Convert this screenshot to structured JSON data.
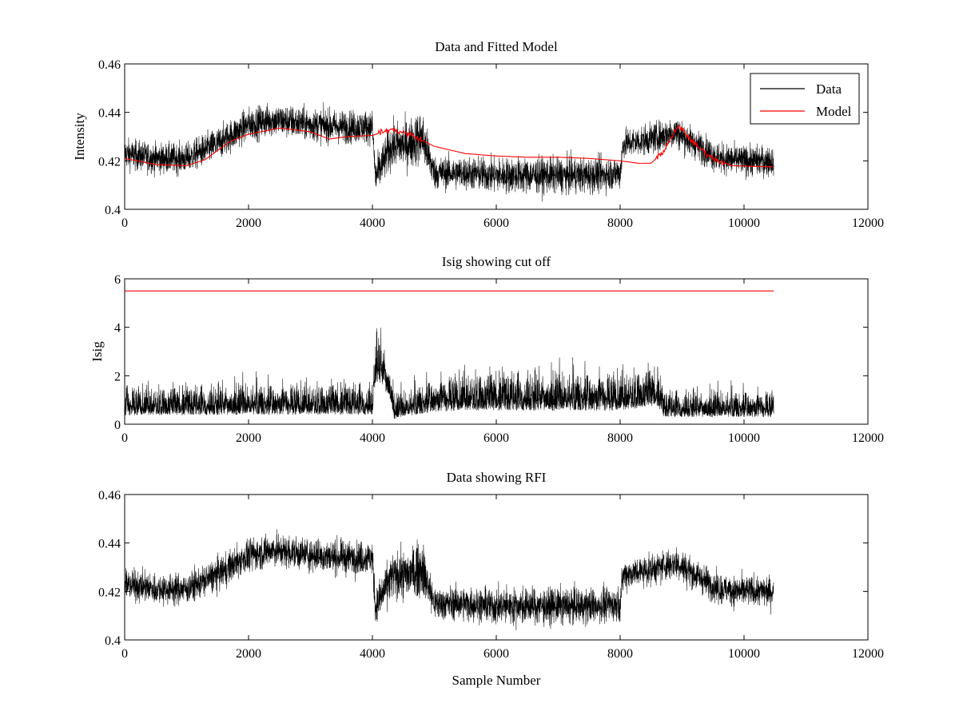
{
  "chart_data": [
    {
      "type": "line",
      "title": "Data and Fitted Model",
      "xlabel": "",
      "ylabel": "Intensity",
      "xlim": [
        0,
        12000
      ],
      "ylim": [
        0.4,
        0.46
      ],
      "xticks": [
        0,
        2000,
        4000,
        6000,
        8000,
        10000,
        12000
      ],
      "yticks": [
        0.4,
        0.42,
        0.44,
        0.46
      ],
      "xtick_labels": [
        "0",
        "2000",
        "4000",
        "6000",
        "8000",
        "10000",
        "12000"
      ],
      "ytick_labels": [
        "0.4",
        "0.42",
        "0.44",
        "0.46"
      ],
      "grid": false,
      "legend_position": "top-right",
      "series": [
        {
          "name": "Data",
          "color": "#000000",
          "style": "noisy band",
          "x": [
            0,
            500,
            1000,
            1500,
            2000,
            2400,
            3000,
            3500,
            4000,
            4050,
            4300,
            4600,
            4800,
            5000,
            5500,
            6000,
            6500,
            7000,
            7500,
            8000,
            8050,
            8500,
            8900,
            9200,
            9600,
            10000,
            10480
          ],
          "y": [
            0.423,
            0.421,
            0.421,
            0.427,
            0.435,
            0.437,
            0.435,
            0.434,
            0.434,
            0.413,
            0.426,
            0.427,
            0.43,
            0.415,
            0.415,
            0.414,
            0.414,
            0.414,
            0.414,
            0.415,
            0.427,
            0.429,
            0.432,
            0.427,
            0.421,
            0.42,
            0.42
          ],
          "noise": [
            0.0055,
            0.0055,
            0.0055,
            0.006,
            0.006,
            0.006,
            0.006,
            0.006,
            0.006,
            0.007,
            0.008,
            0.009,
            0.01,
            0.006,
            0.006,
            0.0065,
            0.0065,
            0.0065,
            0.0065,
            0.006,
            0.0055,
            0.0055,
            0.006,
            0.0055,
            0.0055,
            0.0055,
            0.0055
          ]
        },
        {
          "name": "Model",
          "color": "#ff0000",
          "style": "line",
          "x": [
            0,
            500,
            1000,
            1300,
            1700,
            2000,
            2500,
            3000,
            3300,
            3600,
            4000,
            4300,
            4600,
            5000,
            5500,
            6000,
            6500,
            7000,
            7500,
            8000,
            8300,
            8500,
            8700,
            8950,
            9200,
            9500,
            9800,
            10480
          ],
          "y": [
            0.421,
            0.4185,
            0.418,
            0.4205,
            0.428,
            0.431,
            0.4335,
            0.432,
            0.429,
            0.43,
            0.4305,
            0.433,
            0.431,
            0.426,
            0.423,
            0.422,
            0.4215,
            0.4215,
            0.421,
            0.42,
            0.419,
            0.419,
            0.424,
            0.4345,
            0.427,
            0.421,
            0.418,
            0.4175
          ]
        }
      ]
    },
    {
      "type": "line",
      "title": "Isig showing cut off",
      "xlabel": "",
      "ylabel": "Isig",
      "xlim": [
        0,
        12000
      ],
      "ylim": [
        0,
        6
      ],
      "xticks": [
        0,
        2000,
        4000,
        6000,
        8000,
        10000,
        12000
      ],
      "yticks": [
        0,
        2,
        4,
        6
      ],
      "xtick_labels": [
        "0",
        "2000",
        "4000",
        "6000",
        "8000",
        "10000",
        "12000"
      ],
      "ytick_labels": [
        "0",
        "2",
        "4",
        "6"
      ],
      "grid": false,
      "series": [
        {
          "color": "#000000",
          "style": "noisy band",
          "x": [
            0,
            1000,
            2000,
            3000,
            4000,
            4050,
            4150,
            4300,
            4350,
            5000,
            5500,
            6000,
            7000,
            8000,
            8600,
            8700,
            9500,
            10480
          ],
          "y": [
            0.7,
            0.7,
            0.75,
            0.75,
            0.75,
            2.3,
            2.2,
            1.3,
            0.5,
            0.9,
            1.0,
            1.0,
            1.0,
            1.0,
            1.2,
            0.6,
            0.6,
            0.6
          ],
          "noise": [
            0.6,
            0.6,
            0.65,
            0.65,
            0.65,
            1.0,
            1.0,
            0.7,
            0.5,
            0.7,
            0.8,
            0.8,
            0.8,
            0.8,
            0.8,
            0.55,
            0.55,
            0.55
          ]
        },
        {
          "color": "#ff0000",
          "style": "line",
          "x": [
            0,
            10480
          ],
          "y": [
            5.5,
            5.5
          ]
        }
      ]
    },
    {
      "type": "line",
      "title": "Data showing RFI",
      "xlabel": "Sample Number",
      "ylabel": "",
      "xlim": [
        0,
        12000
      ],
      "ylim": [
        0.4,
        0.46
      ],
      "xticks": [
        0,
        2000,
        4000,
        6000,
        8000,
        10000,
        12000
      ],
      "yticks": [
        0.4,
        0.42,
        0.44,
        0.46
      ],
      "xtick_labels": [
        "0",
        "2000",
        "4000",
        "6000",
        "8000",
        "10000",
        "12000"
      ],
      "ytick_labels": [
        "0.4",
        "0.42",
        "0.44",
        "0.46"
      ],
      "grid": false,
      "series": [
        {
          "color": "#000000",
          "style": "noisy band",
          "x": [
            0,
            500,
            1000,
            1500,
            2000,
            2400,
            3000,
            3500,
            4000,
            4050,
            4300,
            4600,
            4800,
            5000,
            5500,
            6000,
            6500,
            7000,
            7500,
            8000,
            8050,
            8500,
            8900,
            9200,
            9600,
            10000,
            10480
          ],
          "y": [
            0.423,
            0.421,
            0.421,
            0.427,
            0.435,
            0.437,
            0.435,
            0.434,
            0.434,
            0.413,
            0.426,
            0.427,
            0.43,
            0.415,
            0.415,
            0.414,
            0.414,
            0.414,
            0.414,
            0.415,
            0.427,
            0.429,
            0.432,
            0.427,
            0.421,
            0.42,
            0.42
          ],
          "noise": [
            0.0055,
            0.0055,
            0.0055,
            0.006,
            0.006,
            0.006,
            0.006,
            0.006,
            0.006,
            0.007,
            0.008,
            0.009,
            0.01,
            0.006,
            0.006,
            0.0065,
            0.0065,
            0.0065,
            0.0065,
            0.006,
            0.0055,
            0.0055,
            0.006,
            0.0055,
            0.0055,
            0.0055,
            0.0055
          ]
        }
      ]
    }
  ]
}
